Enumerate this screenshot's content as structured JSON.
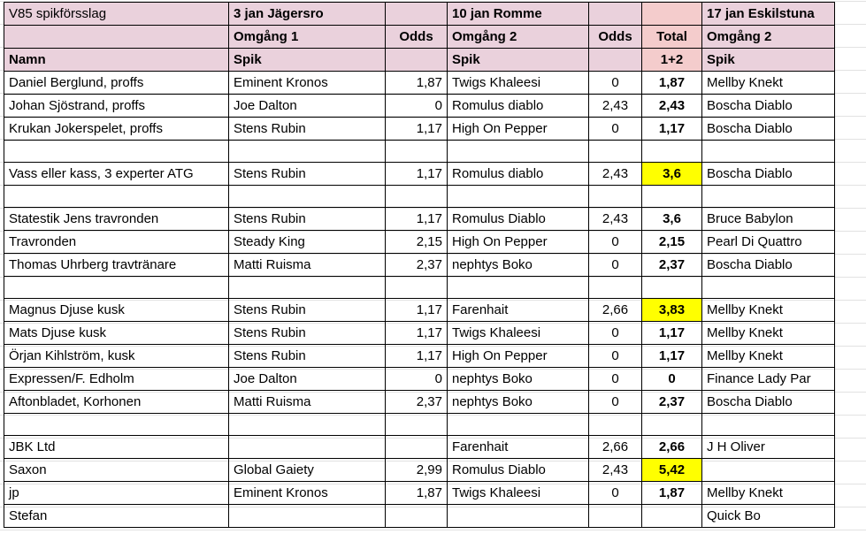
{
  "sheet": {
    "header_rows": [
      [
        "V85 spikförsslag",
        "3 jan Jägersro",
        "",
        "10 jan Romme",
        "",
        "",
        "17 jan Eskilstuna"
      ],
      [
        "",
        "Omgång 1",
        "Odds",
        "Omgång 2",
        "Odds",
        "Total",
        "Omgång 2"
      ],
      [
        "Namn",
        "Spik",
        "",
        "Spik",
        "",
        "1+2",
        "Spik"
      ]
    ],
    "rows": [
      {
        "name": "Daniel Berglund, proffs",
        "spik1": "Eminent Kronos",
        "odds1": "1,87",
        "spik2": "Twigs Khaleesi",
        "odds2": "0",
        "total": "1,87",
        "spik3": "Mellby Knekt",
        "highlight": false
      },
      {
        "name": "Johan Sjöstrand, proffs",
        "spik1": "Joe Dalton",
        "odds1": "0",
        "spik2": "Romulus diablo",
        "odds2": "2,43",
        "total": "2,43",
        "spik3": "Boscha Diablo",
        "highlight": false
      },
      {
        "name": "Krukan Jokerspelet, proffs",
        "spik1": "Stens Rubin",
        "odds1": "1,17",
        "spik2": "High On Pepper",
        "odds2": "0",
        "total": "1,17",
        "spik3": "Boscha Diablo",
        "highlight": false
      },
      {
        "name": "",
        "spik1": "",
        "odds1": "",
        "spik2": "",
        "odds2": "",
        "total": "",
        "spik3": "",
        "highlight": false
      },
      {
        "name": "Vass eller kass, 3 experter ATG",
        "spik1": "Stens Rubin",
        "odds1": "1,17",
        "spik2": "Romulus diablo",
        "odds2": "2,43",
        "total": "3,6",
        "spik3": "Boscha Diablo",
        "highlight": true
      },
      {
        "name": "",
        "spik1": "",
        "odds1": "",
        "spik2": "",
        "odds2": "",
        "total": "",
        "spik3": "",
        "highlight": false
      },
      {
        "name": "Statestik Jens travronden",
        "spik1": "Stens Rubin",
        "odds1": "1,17",
        "spik2": "Romulus Diablo",
        "odds2": "2,43",
        "total": "3,6",
        "spik3": " Bruce Babylon",
        "highlight": false
      },
      {
        "name": "Travronden",
        "spik1": "Steady King",
        "odds1": "2,15",
        "spik2": "High On Pepper",
        "odds2": "0",
        "total": "2,15",
        "spik3": "Pearl Di Quattro",
        "highlight": false
      },
      {
        "name": "Thomas Uhrberg travtränare",
        "spik1": "Matti Ruisma",
        "odds1": "2,37",
        "spik2": "nephtys Boko",
        "odds2": "0",
        "total": "2,37",
        "spik3": "Boscha Diablo",
        "highlight": false
      },
      {
        "name": "",
        "spik1": "",
        "odds1": "",
        "spik2": "",
        "odds2": "",
        "total": "",
        "spik3": "",
        "highlight": false
      },
      {
        "name": "Magnus Djuse kusk",
        "spik1": "Stens Rubin",
        "odds1": "1,17",
        "spik2": "Farenhait",
        "odds2": "2,66",
        "total": "3,83",
        "spik3": "Mellby Knekt",
        "highlight": true
      },
      {
        "name": "Mats Djuse kusk",
        "spik1": "Stens Rubin",
        "odds1": "1,17",
        "spik2": "Twigs Khaleesi",
        "odds2": "0",
        "total": "1,17",
        "spik3": "Mellby Knekt",
        "highlight": false
      },
      {
        "name": "Örjan Kihlström, kusk",
        "spik1": "Stens Rubin",
        "odds1": "1,17",
        "spik2": "High On Pepper",
        "odds2": "0",
        "total": "1,17",
        "spik3": "Mellby Knekt",
        "highlight": false
      },
      {
        "name": "Expressen/F. Edholm",
        "spik1": "Joe Dalton",
        "odds1": "0",
        "spik2": "nephtys Boko",
        "odds2": "0",
        "total": "0",
        "spik3": "Finance Lady Par",
        "highlight": false
      },
      {
        "name": "Aftonbladet, Korhonen",
        "spik1": "Matti Ruisma",
        "odds1": "2,37",
        "spik2": "nephtys Boko",
        "odds2": "0",
        "total": "2,37",
        "spik3": "Boscha Diablo",
        "highlight": false
      },
      {
        "name": "",
        "spik1": "",
        "odds1": "",
        "spik2": "",
        "odds2": "",
        "total": "",
        "spik3": "",
        "highlight": false
      },
      {
        "name": "JBK Ltd",
        "spik1": "",
        "odds1": "",
        "spik2": "Farenhait",
        "odds2": "2,66",
        "total": "2,66",
        "spik3": "J H Oliver",
        "highlight": false
      },
      {
        "name": "Saxon",
        "spik1": "Global Gaiety",
        "odds1": "2,99",
        "spik2": "Romulus Diablo",
        "odds2": "2,43",
        "total": "5,42",
        "spik3": "",
        "highlight": true
      },
      {
        "name": "jp",
        "spik1": "Eminent Kronos",
        "odds1": "1,87",
        "spik2": "Twigs Khaleesi",
        "odds2": "0",
        "total": "1,87",
        "spik3": "Mellby Knekt",
        "highlight": false
      },
      {
        "name": "Stefan",
        "spik1": "",
        "odds1": "",
        "spik2": "",
        "odds2": "",
        "total": "",
        "spik3": "Quick Bo",
        "highlight": false
      }
    ]
  },
  "colors": {
    "header": "#ead1dc",
    "total_header": "#f4cccc",
    "highlight": "#ffff00"
  }
}
